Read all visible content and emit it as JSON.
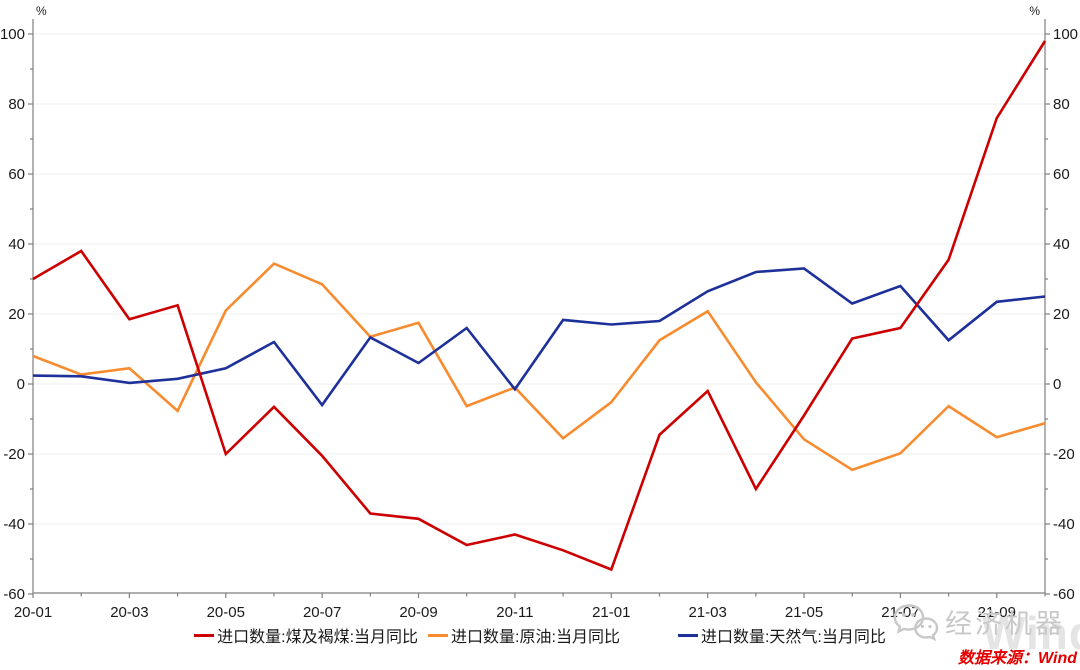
{
  "chart": {
    "y_unit_left": "%",
    "y_unit_right": "%",
    "legend": [
      {
        "label": "进口数量:煤及褐煤:当月同比",
        "color": "#cc0000"
      },
      {
        "label": "进口数量:原油:当月同比",
        "color": "#f78b2e"
      },
      {
        "label": "进口数量:天然气:当月同比",
        "color": "#1e3099"
      }
    ],
    "watermark_brand": "经济机器",
    "watermark_faint": "Wind",
    "source": "数据来源：Wind"
  },
  "chart_data": {
    "type": "line",
    "x": [
      "20-01",
      "20-02",
      "20-03",
      "20-04",
      "20-05",
      "20-06",
      "20-07",
      "20-08",
      "20-09",
      "20-10",
      "20-11",
      "20-12",
      "21-01",
      "21-02",
      "21-03",
      "21-04",
      "21-05",
      "21-06",
      "21-07",
      "21-08",
      "21-09",
      "21-10"
    ],
    "x_label_every": 2,
    "series": [
      {
        "name": "进口数量:煤及褐煤:当月同比",
        "color": "#cc0000",
        "values": [
          30,
          38,
          18.5,
          22.5,
          -20,
          -6.5,
          -20.5,
          -37,
          -38.5,
          -46,
          -43,
          -47.5,
          -53,
          -14.5,
          -2,
          -30,
          -9,
          13,
          16,
          35.5,
          76,
          98
        ]
      },
      {
        "name": "进口数量:原油:当月同比",
        "color": "#f78b2e",
        "values": [
          8,
          2.7,
          4.5,
          -7.7,
          21,
          34.4,
          28.5,
          13.5,
          17.5,
          -6.3,
          -1,
          -15.5,
          -5.2,
          12.5,
          20.8,
          0.5,
          -15.8,
          -24.5,
          -19.8,
          -6.3,
          -15.2,
          -11.2
        ]
      },
      {
        "name": "进口数量:天然气:当月同比",
        "color": "#1e3099",
        "values": [
          2.4,
          2.2,
          0.3,
          1.5,
          4.5,
          12,
          -6,
          13.3,
          6,
          16,
          -1.5,
          18.3,
          17,
          18,
          26.5,
          32,
          33,
          23,
          28,
          12.5,
          23.5,
          25
        ]
      }
    ],
    "ylim": [
      -60,
      100
    ],
    "ytick_step": 20,
    "ytick_minor_step": 10,
    "ylabel": "%",
    "grid": true,
    "legend_position": "bottom",
    "draw_order": [
      1,
      2,
      0
    ]
  }
}
